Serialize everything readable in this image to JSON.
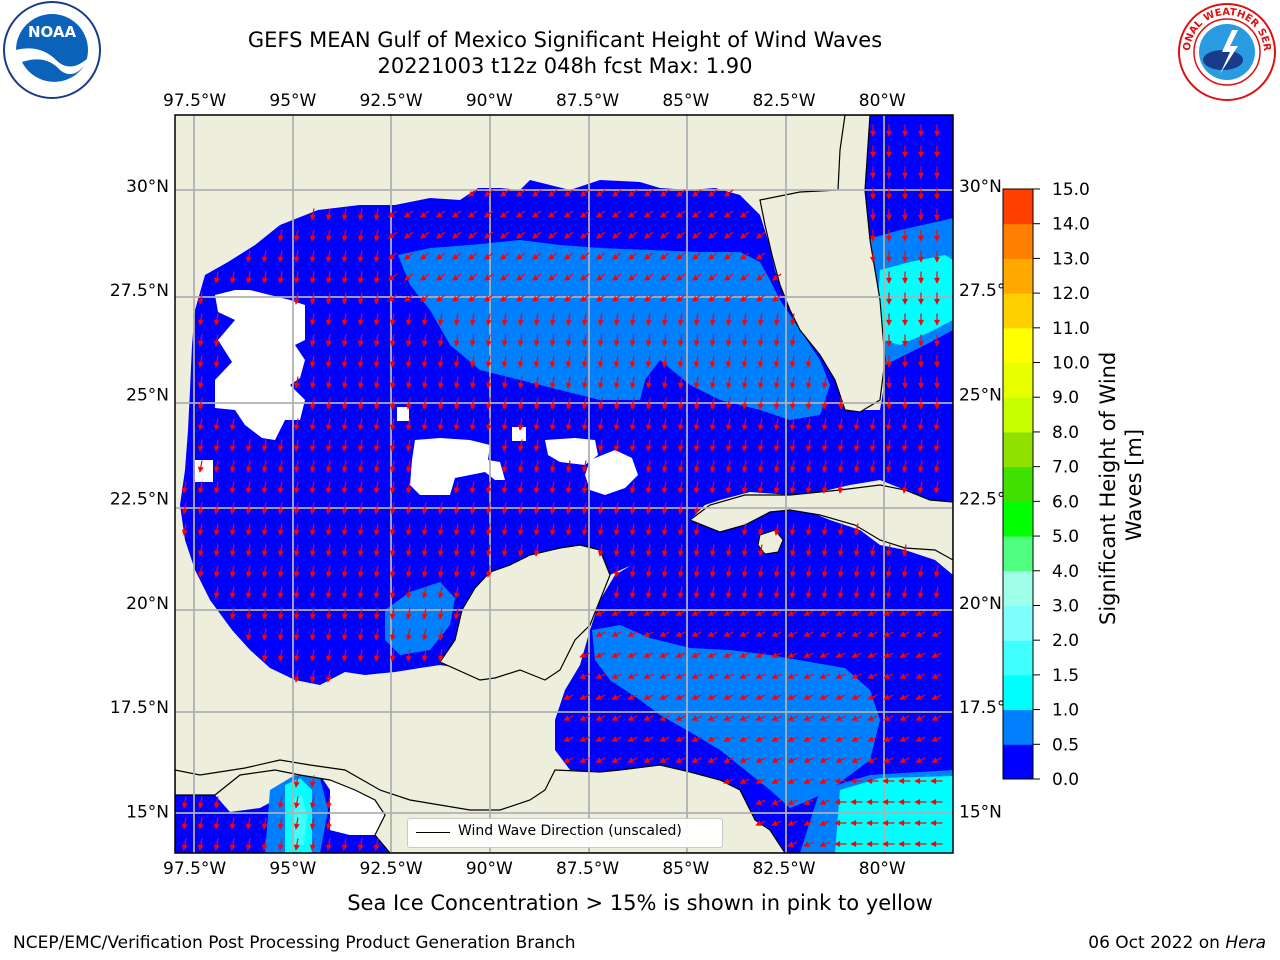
{
  "title": {
    "line1": "GEFS MEAN Gulf of Mexico Significant Height of Wind Waves",
    "line2": "20221003 t12z 048h fcst   Max: 1.90"
  },
  "logos": {
    "noaa_text": "NOAA",
    "noaa_ring_text": "NATIONAL OCEANIC AND ATMOSPHERIC ADMINISTRATION · U.S. DEPARTMENT OF COMMERCE",
    "nws_ring_text": "NATIONAL WEATHER SERVICE"
  },
  "map": {
    "lon_ticks": [
      "97.5°W",
      "95°W",
      "92.5°W",
      "90°W",
      "87.5°W",
      "85°W",
      "82.5°W",
      "80°W"
    ],
    "lon_values": [
      -97.5,
      -95,
      -92.5,
      -90,
      -87.5,
      -85,
      -82.5,
      -80
    ],
    "lat_ticks": [
      "30°N",
      "27.5°N",
      "25°N",
      "22.5°N",
      "20°N",
      "17.5°N",
      "15°N"
    ],
    "lat_values": [
      30,
      27.5,
      25,
      22.5,
      20,
      17.5,
      15
    ],
    "lon_range": [
      -98,
      -78.2
    ],
    "lat_range": [
      14,
      31.7
    ],
    "colors": {
      "land": "#eeeedc",
      "gridline": "#b0b0b0",
      "arrow": "#ff0000"
    }
  },
  "colorbar": {
    "label": "Significant Height of Wind Waves [m]",
    "ticks": [
      "0.0",
      "0.5",
      "1.0",
      "1.5",
      "2.0",
      "3.0",
      "4.0",
      "5.0",
      "6.0",
      "7.0",
      "8.0",
      "9.0",
      "10.0",
      "11.0",
      "12.0",
      "13.0",
      "14.0",
      "15.0"
    ],
    "colors": [
      "#0000ff",
      "#0080ff",
      "#00ffff",
      "#40ffff",
      "#80ffff",
      "#a0ffe8",
      "#50ff80",
      "#00ff00",
      "#40e000",
      "#90e000",
      "#c8ff00",
      "#e8ff00",
      "#ffff00",
      "#ffd000",
      "#ffa800",
      "#ff8000",
      "#ff4000",
      "#ff0000"
    ]
  },
  "legend": {
    "label": "Wind Wave Direction (unscaled)"
  },
  "caption": "Sea Ice Concentration > 15% is shown in pink to yellow",
  "footer": {
    "left": "NCEP/EMC/Verification Post Processing Product Generation Branch",
    "right_date": "06 Oct 2022 on ",
    "right_host": "Hera"
  }
}
